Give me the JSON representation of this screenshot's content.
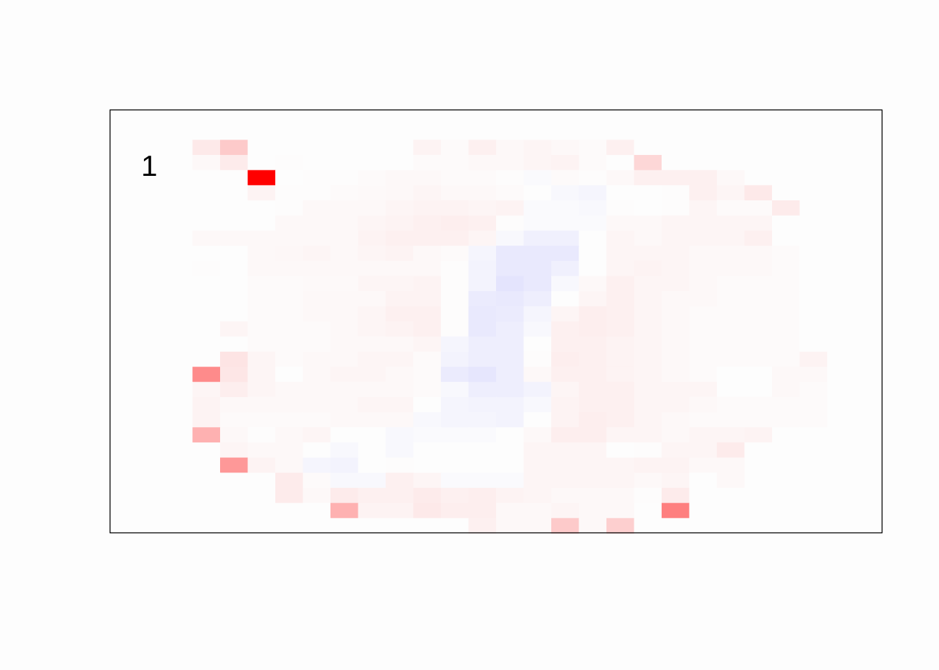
{
  "chart_data": {
    "type": "heatmap",
    "title": "",
    "xlabel": "",
    "ylabel": "",
    "annotation": "1",
    "grid": false,
    "color_scale": {
      "negative": "#0000ff",
      "zero": "#fdfdfd",
      "positive": "#ff0000"
    },
    "value_range": [
      -1,
      1
    ],
    "rows": 28,
    "cols": 28,
    "values": [
      [
        0,
        0,
        0,
        0,
        0,
        0,
        0,
        0,
        0,
        0,
        0,
        0,
        0,
        0,
        0,
        0,
        0,
        0,
        0,
        0,
        0,
        0,
        0,
        0,
        0,
        0,
        0,
        0
      ],
      [
        0,
        0,
        0,
        0,
        0,
        0,
        0,
        0,
        0,
        0,
        0,
        0,
        0,
        0,
        0,
        0,
        0,
        0,
        0,
        0,
        0,
        0,
        0,
        0,
        0,
        0,
        0,
        0
      ],
      [
        0,
        0,
        0,
        0.08,
        0.2,
        0,
        0,
        0,
        0,
        0,
        0,
        0.04,
        0.01,
        0.05,
        0.02,
        0.03,
        0.02,
        0.01,
        0.05,
        0,
        0,
        0,
        0,
        0,
        0,
        0,
        0,
        0
      ],
      [
        0,
        0,
        0,
        0.02,
        0.07,
        0,
        0.005,
        0,
        0,
        0,
        0,
        0.01,
        0.01,
        0.02,
        0.02,
        0.03,
        0.04,
        0.01,
        0,
        0.15,
        0,
        0,
        0,
        0,
        0,
        0,
        0,
        0
      ],
      [
        0,
        0,
        0,
        0,
        0,
        1,
        0,
        0.005,
        0.005,
        0.01,
        0.02,
        0.02,
        0.01,
        0.01,
        0.005,
        -0.01,
        0.01,
        0.005,
        0.02,
        0.05,
        0.05,
        0.05,
        0.02,
        0,
        0,
        0,
        0,
        0
      ],
      [
        0,
        0,
        0,
        0,
        0,
        0.04,
        0.005,
        0.005,
        0.01,
        0.015,
        0.02,
        0.03,
        0.02,
        0.02,
        0.01,
        0,
        -0.02,
        -0.03,
        0,
        0,
        0.005,
        0.05,
        0.03,
        0.08,
        0,
        0,
        0,
        0
      ],
      [
        0,
        0,
        0,
        0,
        0,
        0,
        0.005,
        0.02,
        0.02,
        0.02,
        0.03,
        0.04,
        0.04,
        0.03,
        0.04,
        -0.01,
        -0.01,
        -0.02,
        0.005,
        0,
        0.005,
        0.03,
        0.01,
        0.01,
        0.07,
        0,
        0,
        0
      ],
      [
        0,
        0,
        0,
        0,
        0,
        0,
        0.02,
        0.02,
        0.02,
        0.03,
        0.04,
        0.05,
        0.06,
        0.05,
        0.005,
        -0.01,
        -0.01,
        -0.01,
        0.02,
        0.02,
        0.03,
        0.03,
        0.03,
        0.03,
        0,
        0,
        0,
        0
      ],
      [
        0,
        0,
        0,
        0.02,
        0.02,
        0.02,
        0.02,
        0.02,
        0.02,
        0.04,
        0.05,
        0.05,
        0.05,
        0.03,
        -0.02,
        -0.05,
        -0.05,
        0,
        0.03,
        0.02,
        0.03,
        0.03,
        0.03,
        0.05,
        0,
        0,
        0,
        0
      ],
      [
        0,
        0,
        0,
        0,
        0,
        0.02,
        0.025,
        0.03,
        0.02,
        0.03,
        0.04,
        0.02,
        0.01,
        -0.03,
        -0.08,
        -0.08,
        -0.08,
        0,
        0.03,
        0.03,
        0.03,
        0.02,
        0.02,
        0.02,
        0.01,
        0,
        0,
        0
      ],
      [
        0,
        0,
        0,
        0.005,
        0,
        0.02,
        0.02,
        0.02,
        0.02,
        0.02,
        0.02,
        0.02,
        0.005,
        -0.04,
        -0.08,
        -0.08,
        -0.05,
        0,
        0.03,
        0.04,
        0.03,
        0.02,
        0.02,
        0.02,
        0.01,
        0,
        0,
        0
      ],
      [
        0,
        0,
        0,
        0,
        0,
        0.01,
        0.01,
        0.015,
        0.015,
        0.03,
        0.03,
        0.04,
        0.005,
        -0.04,
        -0.1,
        -0.08,
        -0.02,
        0.02,
        0.05,
        0.03,
        0.03,
        0.02,
        0.01,
        0.01,
        0.01,
        0,
        0,
        0
      ],
      [
        0,
        0,
        0,
        0,
        0,
        0.01,
        0.01,
        0.02,
        0.02,
        0.02,
        0.04,
        0.04,
        0.005,
        -0.07,
        -0.08,
        -0.06,
        0,
        0.03,
        0.05,
        0.03,
        0.02,
        0.02,
        0.01,
        0.01,
        0.01,
        0,
        0,
        0
      ],
      [
        0,
        0,
        0,
        0,
        0,
        0.01,
        0.01,
        0.02,
        0.02,
        0.03,
        0.05,
        0.05,
        0.005,
        -0.08,
        -0.07,
        -0.03,
        0.03,
        0.06,
        0.05,
        0.03,
        0.02,
        0.01,
        0.01,
        0.01,
        0.01,
        0,
        0,
        0
      ],
      [
        0,
        0,
        0,
        0,
        0.03,
        0.01,
        0.01,
        0.01,
        0.02,
        0.03,
        0.04,
        0.05,
        0.005,
        -0.08,
        -0.06,
        -0.02,
        0.05,
        0.06,
        0.05,
        0.03,
        0.02,
        0.01,
        0.01,
        0.01,
        0.01,
        0,
        0,
        0
      ],
      [
        0,
        0,
        0,
        0,
        0,
        0.01,
        0.01,
        0.01,
        0.02,
        0.02,
        0.02,
        0.03,
        -0.03,
        -0.06,
        -0.06,
        0,
        0.05,
        0.05,
        0.04,
        0.03,
        0.02,
        0.01,
        0.01,
        0.01,
        0.01,
        0,
        0,
        0
      ],
      [
        0,
        0,
        0,
        0,
        0.1,
        0.03,
        0.01,
        0.02,
        0.02,
        0.03,
        0.03,
        0.01,
        -0.04,
        -0.06,
        -0.06,
        0.005,
        0.06,
        0.05,
        0.04,
        0.03,
        0.02,
        0.01,
        0.01,
        0.01,
        0.01,
        0.04,
        0,
        0
      ],
      [
        0,
        0,
        0,
        0.45,
        0.09,
        0.03,
        0,
        0.02,
        0.03,
        0.03,
        0.02,
        0.01,
        -0.07,
        -0.09,
        -0.06,
        0.02,
        0.05,
        0.05,
        0.04,
        0.03,
        0.02,
        0.01,
        0,
        0,
        0.02,
        0.02,
        0,
        0
      ],
      [
        0,
        0,
        0,
        0.03,
        0.06,
        0.03,
        0.02,
        0.02,
        0.02,
        0.02,
        0.02,
        0.01,
        -0.02,
        -0.06,
        -0.06,
        -0.04,
        0.03,
        0.05,
        0.05,
        0.03,
        0.03,
        0.03,
        0,
        0,
        0.02,
        0.01,
        0,
        0
      ],
      [
        0,
        0,
        0,
        0.04,
        0.02,
        0.02,
        0.02,
        0.02,
        0.02,
        0.03,
        0.03,
        0,
        -0.03,
        -0.04,
        -0.04,
        -0.02,
        0.04,
        0.05,
        0.05,
        0.03,
        0.03,
        0.02,
        0.01,
        0.01,
        0.01,
        0.01,
        0,
        0
      ],
      [
        0,
        0,
        0,
        0.04,
        0.01,
        0.01,
        0.01,
        0.01,
        0.02,
        0.02,
        0.02,
        -0.02,
        -0.03,
        -0.03,
        -0.04,
        0,
        0.04,
        0.06,
        0.05,
        0.03,
        0.02,
        0.01,
        0.01,
        0.01,
        0.01,
        0.01,
        0,
        0
      ],
      [
        0,
        0,
        0,
        0.3,
        0.02,
        0.005,
        0.02,
        0.03,
        0,
        0,
        -0.02,
        -0.01,
        -0.01,
        -0.01,
        0,
        0.02,
        0.06,
        0.06,
        0.03,
        0.03,
        0.02,
        0.03,
        0.03,
        0.04,
        0,
        0,
        0,
        0
      ],
      [
        0,
        0,
        0,
        0,
        0.03,
        0.02,
        0.02,
        0,
        -0.02,
        0,
        -0.02,
        0,
        0,
        0,
        0,
        0.03,
        0.03,
        0.03,
        0,
        0.005,
        0.03,
        0.03,
        0.07,
        0,
        0,
        0,
        0,
        0
      ],
      [
        0,
        0,
        0,
        0,
        0.4,
        0.04,
        0.02,
        -0.03,
        -0.04,
        0,
        0.005,
        0,
        0,
        0,
        0,
        0.03,
        0.03,
        0.03,
        0.03,
        0.04,
        0.04,
        0.02,
        0.02,
        0,
        0,
        0,
        0,
        0
      ],
      [
        0,
        0,
        0,
        0,
        0,
        0,
        0.07,
        0.01,
        -0.02,
        -0.02,
        0.05,
        0.03,
        -0.01,
        -0.01,
        -0.01,
        0.03,
        0.03,
        0.03,
        0.03,
        0.02,
        0.03,
        0,
        0.02,
        0,
        0,
        0,
        0,
        0
      ],
      [
        0,
        0,
        0,
        0,
        0,
        0,
        0.07,
        0.02,
        0.07,
        0.05,
        0.05,
        0.07,
        0.05,
        0.06,
        0.04,
        0.03,
        0.02,
        0.02,
        0.02,
        0.005,
        0.07,
        0,
        0,
        0,
        0,
        0,
        0,
        0
      ],
      [
        0,
        0,
        0,
        0,
        0,
        0,
        0,
        0,
        0.3,
        0.04,
        0.04,
        0.08,
        0.06,
        0.06,
        0.02,
        0.02,
        0.03,
        0.02,
        0.02,
        0,
        0.5,
        0,
        0,
        0,
        0,
        0,
        0,
        0
      ],
      [
        0,
        0,
        0,
        0,
        0,
        0,
        0,
        0,
        0,
        0,
        0,
        0,
        0,
        0.05,
        0.02,
        0.02,
        0.2,
        0.02,
        0.18,
        0,
        0,
        0,
        0,
        0,
        0,
        0,
        0,
        0
      ]
    ]
  }
}
